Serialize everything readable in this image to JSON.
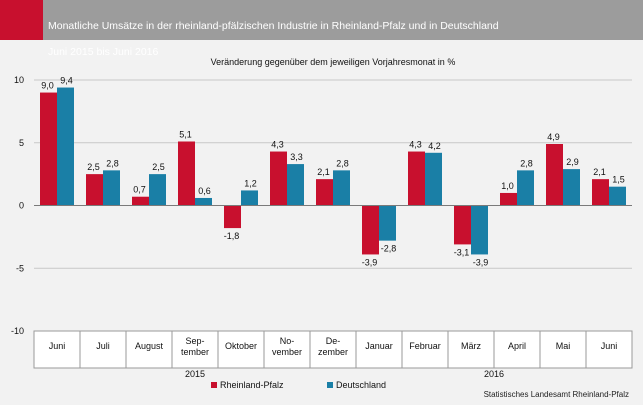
{
  "header": {
    "title_line1": "Monatliche Umsätze in der rheinland-pfälzischen Industrie in Rheinland-Pfalz und in Deutschland",
    "title_line2": "Juni 2015 bis Juni 2016"
  },
  "source": "Statistisches Landesamt Rheinland-Pfalz",
  "chart_data": {
    "type": "bar",
    "subtitle": "Veränderung gegenüber dem jeweiligen Vorjahresmonat in %",
    "categories": [
      [
        "Juni"
      ],
      [
        "Juli"
      ],
      [
        "August"
      ],
      [
        "Sep-",
        "tember"
      ],
      [
        "Oktober"
      ],
      [
        "No-",
        "vember"
      ],
      [
        "De-",
        "zember"
      ],
      [
        "Januar"
      ],
      [
        "Februar"
      ],
      [
        "März"
      ],
      [
        "April"
      ],
      [
        "Mai"
      ],
      [
        "Juni"
      ]
    ],
    "year_groups": [
      {
        "label": "2015",
        "start": 0,
        "end": 6
      },
      {
        "label": "2016",
        "start": 7,
        "end": 12
      }
    ],
    "series": [
      {
        "name": "Rheinland-Pfalz",
        "color": "#c8102e",
        "values": [
          9.0,
          2.5,
          0.7,
          5.1,
          -1.8,
          4.3,
          2.1,
          -3.9,
          4.3,
          -3.1,
          1.0,
          4.9,
          2.1
        ],
        "labels": [
          "9,0",
          "2,5",
          "0,7",
          "5,1",
          "-1,8",
          "4,3",
          "2,1",
          "-3,9",
          "4,3",
          "-3,1",
          "1,0",
          "4,9",
          "2,1"
        ]
      },
      {
        "name": "Deutschland",
        "color": "#1a7fa6",
        "values": [
          9.4,
          2.8,
          2.5,
          0.6,
          1.2,
          3.3,
          2.8,
          -2.8,
          4.2,
          -3.9,
          2.8,
          2.9,
          1.5
        ],
        "labels": [
          "9,4",
          "2,8",
          "2,5",
          "0,6",
          "1,2",
          "3,3",
          "2,8",
          "-2,8",
          "4,2",
          "-3,9",
          "2,8",
          "2,9",
          "1,5"
        ]
      }
    ],
    "ylim": [
      -10,
      10
    ],
    "yticks": [
      10,
      5,
      0,
      -5,
      -10
    ],
    "ytick_labels": [
      "10",
      "5",
      "0",
      "-5",
      "-10"
    ],
    "grid": true,
    "legend_position": "bottom"
  }
}
